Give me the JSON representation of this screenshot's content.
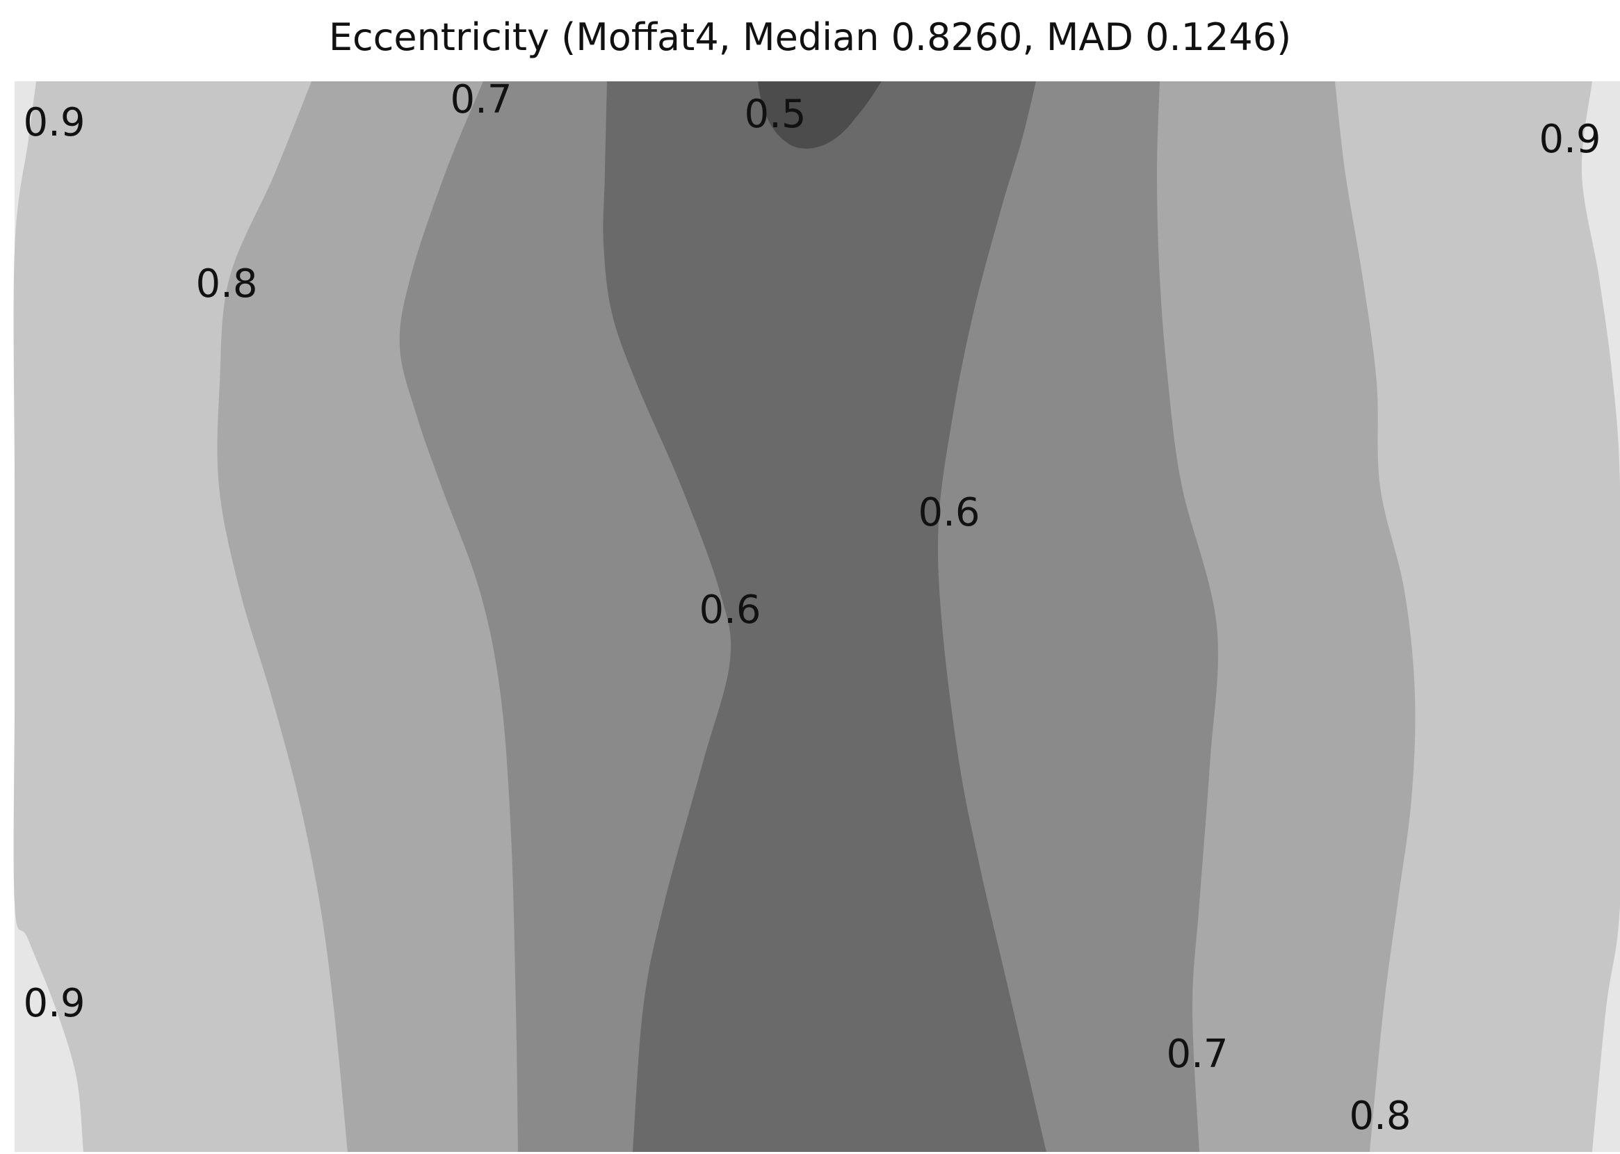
{
  "chart_data": {
    "type": "heatmap",
    "title": "Eccentricity (Moffat4, Median 0.8260, MAD 0.1246)",
    "levels": [
      0.5,
      0.6,
      0.7,
      0.8,
      0.9
    ],
    "band_colors": [
      "#4c4c4c",
      "#6a6a6a",
      "#8a8a8a",
      "#a8a8a8",
      "#c6c6c6",
      "#e6e6e6"
    ],
    "contour_labels": [
      {
        "text": "0.9",
        "level": 0.9
      },
      {
        "text": "0.7",
        "level": 0.7
      },
      {
        "text": "0.5",
        "level": 0.5
      },
      {
        "text": "0.9",
        "level": 0.9
      },
      {
        "text": "0.8",
        "level": 0.8
      },
      {
        "text": "0.6",
        "level": 0.6
      },
      {
        "text": "0.6",
        "level": 0.6
      },
      {
        "text": "0.9",
        "level": 0.9
      },
      {
        "text": "0.7",
        "level": 0.7
      },
      {
        "text": "0.8",
        "level": 0.8
      }
    ]
  }
}
